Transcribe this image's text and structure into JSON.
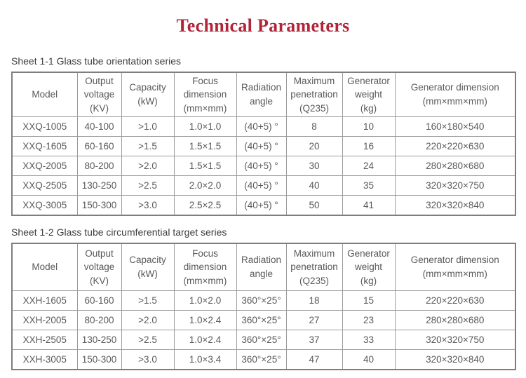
{
  "page": {
    "title": "Technical Parameters",
    "title_color": "#b22539",
    "text_color": "#58595b",
    "border_color": "#9b9b9b"
  },
  "tables": [
    {
      "caption": "Sheet 1-1 Glass tube orientation series",
      "headers": [
        "Model",
        "Output\nvoltage\n(KV)",
        "Capacity\n(kW)",
        "Focus\ndimension\n(mm×mm)",
        "Radiation\nangle",
        "Maximum\npenetration\n(Q235)",
        "Generator\nweight\n(kg)",
        "Generator dimension\n(mm×mm×mm)"
      ],
      "rows": [
        [
          "XXQ-1005",
          "40-100",
          ">1.0",
          "1.0×1.0",
          "(40+5) °",
          "8",
          "10",
          "160×180×540"
        ],
        [
          "XXQ-1605",
          "60-160",
          ">1.5",
          "1.5×1.5",
          "(40+5) °",
          "20",
          "16",
          "220×220×630"
        ],
        [
          "XXQ-2005",
          "80-200",
          ">2.0",
          "1.5×1.5",
          "(40+5) °",
          "30",
          "24",
          "280×280×680"
        ],
        [
          "XXQ-2505",
          "130-250",
          ">2.5",
          "2.0×2.0",
          "(40+5) °",
          "40",
          "35",
          "320×320×750"
        ],
        [
          "XXQ-3005",
          "150-300",
          ">3.0",
          "2.5×2.5",
          "(40+5) °",
          "50",
          "41",
          "320×320×840"
        ]
      ]
    },
    {
      "caption": "Sheet 1-2 Glass tube circumferential target series",
      "headers": [
        "Model",
        "Output\nvoltage\n(KV)",
        "Capacity\n(kW)",
        "Focus\ndimension\n(mm×mm)",
        "Radiation\nangle",
        "Maximum\npenetration\n(Q235)",
        "Generator\nweight\n(kg)",
        "Generator dimension\n(mm×mm×mm)"
      ],
      "rows": [
        [
          "XXH-1605",
          "60-160",
          ">1.5",
          "1.0×2.0",
          "360°×25°",
          "18",
          "15",
          "220×220×630"
        ],
        [
          "XXH-2005",
          "80-200",
          ">2.0",
          "1.0×2.4",
          "360°×25°",
          "27",
          "23",
          "280×280×680"
        ],
        [
          "XXH-2505",
          "130-250",
          ">2.5",
          "1.0×2.4",
          "360°×25°",
          "37",
          "33",
          "320×320×750"
        ],
        [
          "XXH-3005",
          "150-300",
          ">3.0",
          "1.0×3.4",
          "360°×25°",
          "47",
          "40",
          "320×320×840"
        ]
      ]
    }
  ]
}
